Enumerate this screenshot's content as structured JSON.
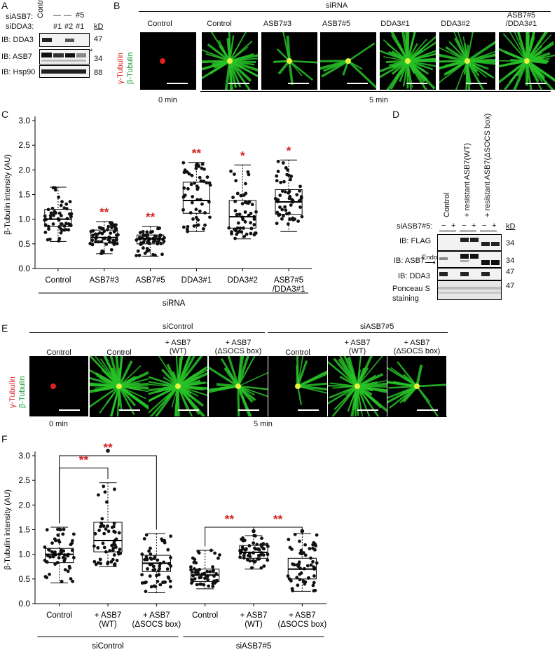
{
  "panels": {
    "A": "A",
    "B": "B",
    "C": "C",
    "D": "D",
    "E": "E",
    "F": "F"
  },
  "panelA": {
    "row_siASB7": "siASB7:",
    "row_siDDA3": "siDDA3:",
    "lane_control": "Control",
    "dash1": "—",
    "dash2": "—",
    "siASB7_5": "#5",
    "dda3_1": "#1",
    "dda3_2": "#2",
    "dda3_3": "#1",
    "kd": "kD",
    "ib": [
      "IB: DDA3",
      "IB: ASB7",
      "IB: Hsp90"
    ],
    "mw": [
      "47",
      "34",
      "88"
    ],
    "star": "*"
  },
  "panelB": {
    "header": "siRNA",
    "labels": [
      "Control",
      "Control",
      "ASB7#3",
      "ASB7#5",
      "DDA3#1",
      "DDA3#2",
      "ASB7#5\n/DDA3#1"
    ],
    "gamma": "γ-Tubulin",
    "beta": "β-Tubulin",
    "time0": "0 min",
    "time5": "5 min"
  },
  "panelD": {
    "lanes": [
      "Control",
      "+ resistant ASB7(WT)",
      "+ resistant ASB7(ΔSOCS box)"
    ],
    "si_label": "siASB7#5:",
    "si_signs": [
      "−",
      "+",
      "−",
      "+",
      "−",
      "+"
    ],
    "kd": "kD",
    "ib": [
      "IB: FLAG",
      "IB: ASB7",
      "IB: DDA3",
      "Ponceau S\nstaining"
    ],
    "endo": "Endo.",
    "mw": [
      "34",
      "34",
      "47",
      "47"
    ]
  },
  "panelE": {
    "group1": "siControl",
    "group2": "siASB7#5",
    "labels": [
      "Control",
      "Control",
      "+ ASB7\n(WT)",
      "+ ASB7\n(ΔSOCS box)",
      "Control",
      "+ ASB7\n(WT)",
      "+ ASB7\n(ΔSOCS box)"
    ],
    "gamma": "γ-Tubulin",
    "beta": "β-Tubulin",
    "time0": "0 min",
    "time5": "5 min"
  },
  "colors": {
    "gamma": "#e02020",
    "beta": "#27c227",
    "sig": "#d22222"
  },
  "chart_data": [
    {
      "type": "box",
      "panel": "C",
      "ylabel": "β-Tubulin intensity (AU)",
      "xlabel": "siRNA",
      "ylim": [
        0,
        3.0
      ],
      "yticks": [
        "0.0",
        "0.5",
        "1.0",
        "1.5",
        "2.0",
        "2.5",
        "3.0"
      ],
      "categories": [
        "Control",
        "ASB7#3",
        "ASB7#5",
        "DDA3#1",
        "DDA3#2",
        "ASB7#5\n/DDA3#1"
      ],
      "boxes": [
        {
          "min": 0.55,
          "q1": 0.85,
          "median": 1.0,
          "q3": 1.2,
          "max": 1.65
        },
        {
          "min": 0.3,
          "q1": 0.52,
          "median": 0.63,
          "q3": 0.78,
          "max": 0.95
        },
        {
          "min": 0.25,
          "q1": 0.5,
          "median": 0.6,
          "q3": 0.68,
          "max": 0.85
        },
        {
          "min": 0.75,
          "q1": 1.12,
          "median": 1.38,
          "q3": 1.75,
          "max": 2.15
        },
        {
          "min": 0.6,
          "q1": 0.82,
          "median": 1.05,
          "q3": 1.38,
          "max": 2.1
        },
        {
          "min": 0.75,
          "q1": 1.1,
          "median": 1.35,
          "q3": 1.6,
          "max": 2.2
        }
      ],
      "significance": [
        "",
        "**",
        "**",
        "**",
        "*",
        "*"
      ]
    },
    {
      "type": "box",
      "panel": "F",
      "ylabel": "β-Tubulin intensity (AU)",
      "ylim": [
        0,
        3.0
      ],
      "yticks": [
        "0.0",
        "0.5",
        "1.0",
        "1.5",
        "2.0",
        "2.5",
        "3.0"
      ],
      "categories": [
        "Control",
        "+ ASB7\n(WT)",
        "+ ASB7\n(ΔSOCS box)",
        "Control",
        "+ ASB7\n(WT)",
        "+ ASB7\n(ΔSOCS box)"
      ],
      "groups": [
        {
          "label": "siControl",
          "from": 0,
          "to": 2
        },
        {
          "label": "siASB7#5",
          "from": 3,
          "to": 5
        }
      ],
      "boxes": [
        {
          "min": 0.42,
          "q1": 0.83,
          "median": 1.0,
          "q3": 1.12,
          "max": 1.55
        },
        {
          "min": 0.75,
          "q1": 1.05,
          "median": 1.28,
          "q3": 1.65,
          "max": 2.45
        },
        {
          "min": 0.22,
          "q1": 0.65,
          "median": 0.82,
          "q3": 0.98,
          "max": 1.42
        },
        {
          "min": 0.3,
          "q1": 0.45,
          "median": 0.58,
          "q3": 0.7,
          "max": 1.08
        },
        {
          "min": 0.7,
          "q1": 0.92,
          "median": 1.04,
          "q3": 1.18,
          "max": 1.38
        },
        {
          "min": 0.25,
          "q1": 0.5,
          "median": 0.7,
          "q3": 0.92,
          "max": 1.42
        }
      ],
      "outliers": [
        [],
        [
          3.1
        ],
        [],
        [],
        [
          1.47
        ],
        [
          1.47
        ]
      ],
      "brackets": [
        {
          "from": 0,
          "to": 1,
          "label": "**"
        },
        {
          "from": 0,
          "to": 2,
          "label": "**"
        },
        {
          "from": 3,
          "to": 4,
          "label": "**"
        },
        {
          "from": 4,
          "to": 5,
          "label": "**"
        }
      ]
    }
  ]
}
